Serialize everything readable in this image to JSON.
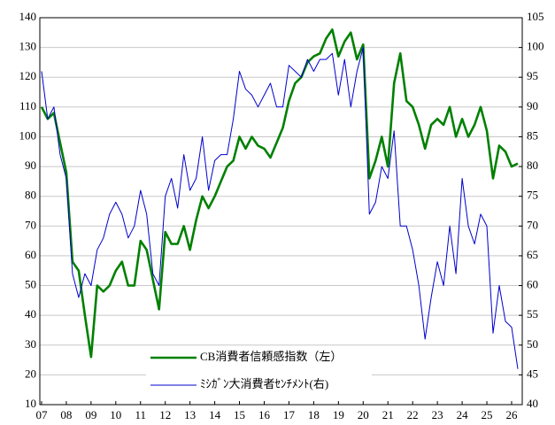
{
  "chart_data": {
    "type": "line",
    "x": [
      2007,
      2007.25,
      2007.5,
      2007.75,
      2008,
      2008.25,
      2008.5,
      2008.75,
      2009,
      2009.25,
      2009.5,
      2009.75,
      2010,
      2010.25,
      2010.5,
      2010.75,
      2011,
      2011.25,
      2011.5,
      2011.75,
      2012,
      2012.25,
      2012.5,
      2012.75,
      2013,
      2013.25,
      2013.5,
      2013.75,
      2014,
      2014.25,
      2014.5,
      2014.75,
      2015,
      2015.25,
      2015.5,
      2015.75,
      2016,
      2016.25,
      2016.5,
      2016.75,
      2017,
      2017.25,
      2017.5,
      2017.75,
      2018,
      2018.25,
      2018.5,
      2018.75,
      2019,
      2019.25,
      2019.5,
      2019.75,
      2020,
      2020.25,
      2020.5,
      2020.75,
      2021,
      2021.25,
      2021.5,
      2021.75,
      2022,
      2022.25,
      2022.5,
      2022.75,
      2023,
      2023.25,
      2023.5,
      2023.75,
      2024,
      2024.25,
      2024.5,
      2024.75,
      2025,
      2025.25,
      2025.5,
      2025.75,
      2026,
      2026.25
    ],
    "series": [
      {
        "name": "CB消費者信頼感指数（左）",
        "color": "#008000",
        "values": [
          110,
          106,
          108,
          98,
          88,
          58,
          55,
          40,
          26,
          50,
          48,
          50,
          55,
          58,
          50,
          50,
          65,
          62,
          52,
          42,
          68,
          64,
          64,
          70,
          62,
          72,
          80,
          76,
          80,
          85,
          90,
          92,
          100,
          96,
          100,
          97,
          96,
          93,
          98,
          103,
          112,
          118,
          120,
          125,
          127,
          128,
          133,
          136,
          127,
          132,
          135,
          126,
          131,
          86,
          92,
          100,
          90,
          118,
          128,
          112,
          110,
          104,
          96,
          104,
          106,
          104,
          110,
          100,
          106,
          100,
          104,
          110,
          102,
          86,
          97,
          95,
          90,
          91
        ]
      },
      {
        "name": "ﾐｼｶﾞﾝ大消費者ｾﾝﾁﾒﾝﾄ(右)",
        "color": "#0000cc",
        "axis": "y2",
        "values": [
          96,
          88,
          90,
          82,
          78,
          62,
          58,
          62,
          60,
          66,
          68,
          72,
          74,
          72,
          68,
          70,
          76,
          72,
          62,
          60,
          75,
          78,
          73,
          82,
          76,
          78,
          85,
          76,
          81,
          82,
          82,
          88,
          96,
          93,
          92,
          90,
          92,
          94,
          90,
          90,
          97,
          96,
          95,
          98,
          96,
          98,
          98,
          99,
          92,
          98,
          90,
          96,
          100,
          72,
          74,
          80,
          78,
          86,
          70,
          70,
          66,
          60,
          51,
          58,
          64,
          60,
          70,
          62,
          78,
          70,
          67,
          72,
          70,
          52,
          60,
          54,
          53,
          46
        ]
      }
    ],
    "xlim": [
      2006.93,
      2026.43
    ],
    "xticks": [
      {
        "value": 2007,
        "label": "07"
      },
      {
        "value": 2008,
        "label": "08"
      },
      {
        "value": 2009,
        "label": "09"
      },
      {
        "value": 2010,
        "label": "10"
      },
      {
        "value": 2011,
        "label": "11"
      },
      {
        "value": 2012,
        "label": "12"
      },
      {
        "value": 2013,
        "label": "13"
      },
      {
        "value": 2014,
        "label": "14"
      },
      {
        "value": 2015,
        "label": "15"
      },
      {
        "value": 2016,
        "label": "16"
      },
      {
        "value": 2017,
        "label": "17"
      },
      {
        "value": 2018,
        "label": "18"
      },
      {
        "value": 2019,
        "label": "19"
      },
      {
        "value": 2020,
        "label": "20"
      },
      {
        "value": 2021,
        "label": "21"
      },
      {
        "value": 2022,
        "label": "22"
      },
      {
        "value": 2023,
        "label": "23"
      },
      {
        "value": 2024,
        "label": "24"
      },
      {
        "value": 2025,
        "label": "25"
      },
      {
        "value": 2026,
        "label": "26"
      }
    ],
    "ylim": [
      10,
      140
    ],
    "yticks": [
      10,
      20,
      30,
      40,
      50,
      60,
      70,
      80,
      90,
      100,
      110,
      120,
      130,
      140
    ],
    "y2lim": [
      40,
      105
    ],
    "y2ticks": [
      40,
      45,
      50,
      55,
      60,
      65,
      70,
      75,
      80,
      85,
      90,
      95,
      100,
      105
    ],
    "grid": true
  }
}
